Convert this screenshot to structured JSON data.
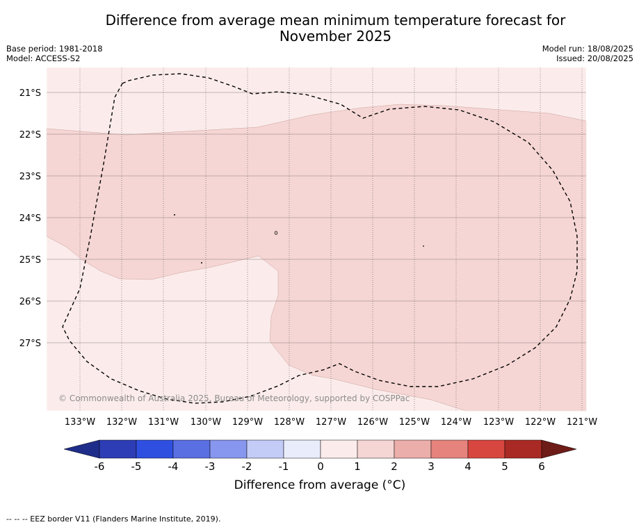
{
  "title": "Difference from average mean minimum temperature forecast for November 2025",
  "title_line1": "Difference from average mean minimum temperature forecast for",
  "title_line2": "November 2025",
  "base_period": "Base period: 1981-2018",
  "model": "Model: ACCESS-S2",
  "model_run": "Model run: 18/08/2025",
  "issued": "Issued: 20/08/2025",
  "copyright": "© Commonwealth of Australia 2025, Bureau of Meteorology, supported by COSPPac",
  "longitude_labels": [
    "133°W",
    "132°W",
    "131°W",
    "130°W",
    "129°W",
    "128°W",
    "127°W",
    "126°W",
    "125°W",
    "124°W",
    "123°W",
    "122°W",
    "121°W"
  ],
  "latitude_labels": [
    "21°S",
    "22°S",
    "23°S",
    "24°S",
    "25°S",
    "26°S",
    "27°S"
  ],
  "colorbar": {
    "title": "Difference from average (°C)",
    "tick_labels": [
      "-6",
      "-5",
      "-4",
      "-3",
      "-2",
      "-1",
      "0",
      "1",
      "2",
      "3",
      "4",
      "5",
      "6"
    ],
    "colors": [
      "#1f2d8a",
      "#2c3db5",
      "#2f4fe0",
      "#5a6fe2",
      "#8796ee",
      "#c3cbf7",
      "#e9ecfb",
      "#fbeceb",
      "#f5d6d4",
      "#ecaeaa",
      "#e6837c",
      "#d8473f",
      "#a92a24",
      "#6e1c18"
    ]
  },
  "legend_footnote": "--  --  -- EEZ border V11 (Flanders Marine Institute, 2019).",
  "map_colors": {
    "class_0_1": "#fbeceb",
    "class_1_2": "#f5d6d4"
  }
}
